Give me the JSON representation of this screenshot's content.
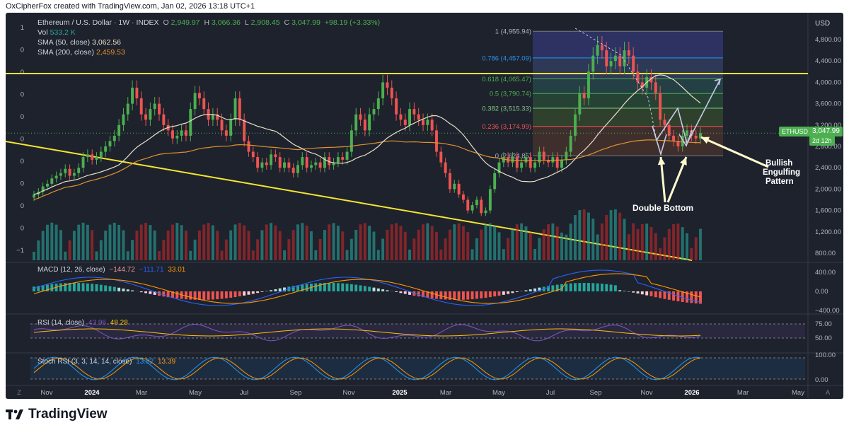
{
  "header": {
    "caption": "OxCipherFox created with TradingView.com, Jan 02, 2026 13:18 UTC+1"
  },
  "legend": {
    "symbol": "Ethereum / U.S. Dollar · 1W · INDEX",
    "o_label": "O",
    "o": "2,949.97",
    "h_label": "H",
    "h": "3,066.36",
    "l_label": "L",
    "l": "2,908.45",
    "c_label": "C",
    "c": "3,047.99",
    "chg": "+98.19 (+3.33%)",
    "vol_label": "Vol",
    "vol": "533.2 K",
    "sma50_label": "SMA (50, close)",
    "sma50": "3,062.56",
    "sma200_label": "SMA (200, close)",
    "sma200": "2,459.53"
  },
  "left_scale_labels": [
    "1",
    "0",
    "0",
    "0",
    "0",
    "0",
    "0",
    "0",
    "0",
    "0",
    "−1"
  ],
  "right_axis": {
    "currency": "USD",
    "ticks": [
      "4,800.00",
      "4,400.00",
      "4,000.00",
      "3,600.00",
      "3,200.00",
      "2,800.00",
      "2,400.00",
      "2,000.00",
      "1,600.00",
      "1,200.00",
      "800.00"
    ]
  },
  "last_price": {
    "symbol": "ETHUSD",
    "value": "3,047.99",
    "countdown": "2d 12h"
  },
  "fib_levels": [
    {
      "label": "1 (4,955.94)",
      "price": 4955.94
    },
    {
      "label": "0.786 (4,457.09)",
      "price": 4457.09
    },
    {
      "label": "0.618 (4,065.47)",
      "price": 4065.47
    },
    {
      "label": "0.5 (3,790.74)",
      "price": 3790.74
    },
    {
      "label": "0.382 (3,515.33)",
      "price": 3515.33
    },
    {
      "label": "0.236 (3,174.99)",
      "price": 3174.99
    },
    {
      "label": "0 (2,624.85)",
      "price": 2624.85
    }
  ],
  "annotations": {
    "double_bottom": "Double Bottom",
    "bullish_1": "Bullish",
    "bullish_2": "Engulfing",
    "bullish_3": "Pattern"
  },
  "macd": {
    "label": "MACD (12, 26, close)",
    "v1": "−144.72",
    "v2": "−111.71",
    "v3": "33.01",
    "ticks": [
      "400.00",
      "0.00",
      "−400.00"
    ]
  },
  "rsi": {
    "label": "RSI (14, close)",
    "v1": "43.96",
    "v2": "48.28",
    "ticks": [
      "75.00",
      "50.00"
    ]
  },
  "stoch": {
    "label": "Stoch RSI (3, 3, 14, 14, close)",
    "v1": "13.82",
    "v2": "13.39",
    "ticks": [
      "100.00",
      "0.00"
    ]
  },
  "time_axis": [
    "Nov",
    "2024",
    "Mar",
    "May",
    "Jul",
    "Sep",
    "Nov",
    "2025",
    "Mar",
    "May",
    "Jul",
    "Sep",
    "Nov",
    "2026",
    "Mar",
    "May"
  ],
  "corner": {
    "left": "Z",
    "right": "A"
  },
  "brand": "TradingView",
  "colors": {
    "bull": "#4caf50",
    "bear": "#ef5350",
    "sma50": "#e8e0c8",
    "sma200": "#e0922e",
    "trendline": "#f5e630",
    "macd": "#2962ff",
    "signal": "#ff9800",
    "rsi": "#7e57c2",
    "background": "#1e222d"
  },
  "chart_data": {
    "type": "candlestick",
    "title": "Ethereum / U.S. Dollar · 1W · INDEX",
    "x": [
      "2023-11",
      "2024-01",
      "2024-03",
      "2024-05",
      "2024-07",
      "2024-09",
      "2024-11",
      "2025-01",
      "2025-03",
      "2025-05",
      "2025-07",
      "2025-09",
      "2025-11",
      "2026-01"
    ],
    "close": [
      2000,
      2300,
      3600,
      3000,
      3200,
      2400,
      3400,
      3300,
      2000,
      2500,
      3700,
      4400,
      2900,
      3048
    ],
    "ylim": [
      800,
      5000
    ],
    "series": [
      {
        "name": "SMA (50, close)",
        "last": 3062.56
      },
      {
        "name": "SMA (200, close)",
        "last": 2459.53
      }
    ]
  }
}
